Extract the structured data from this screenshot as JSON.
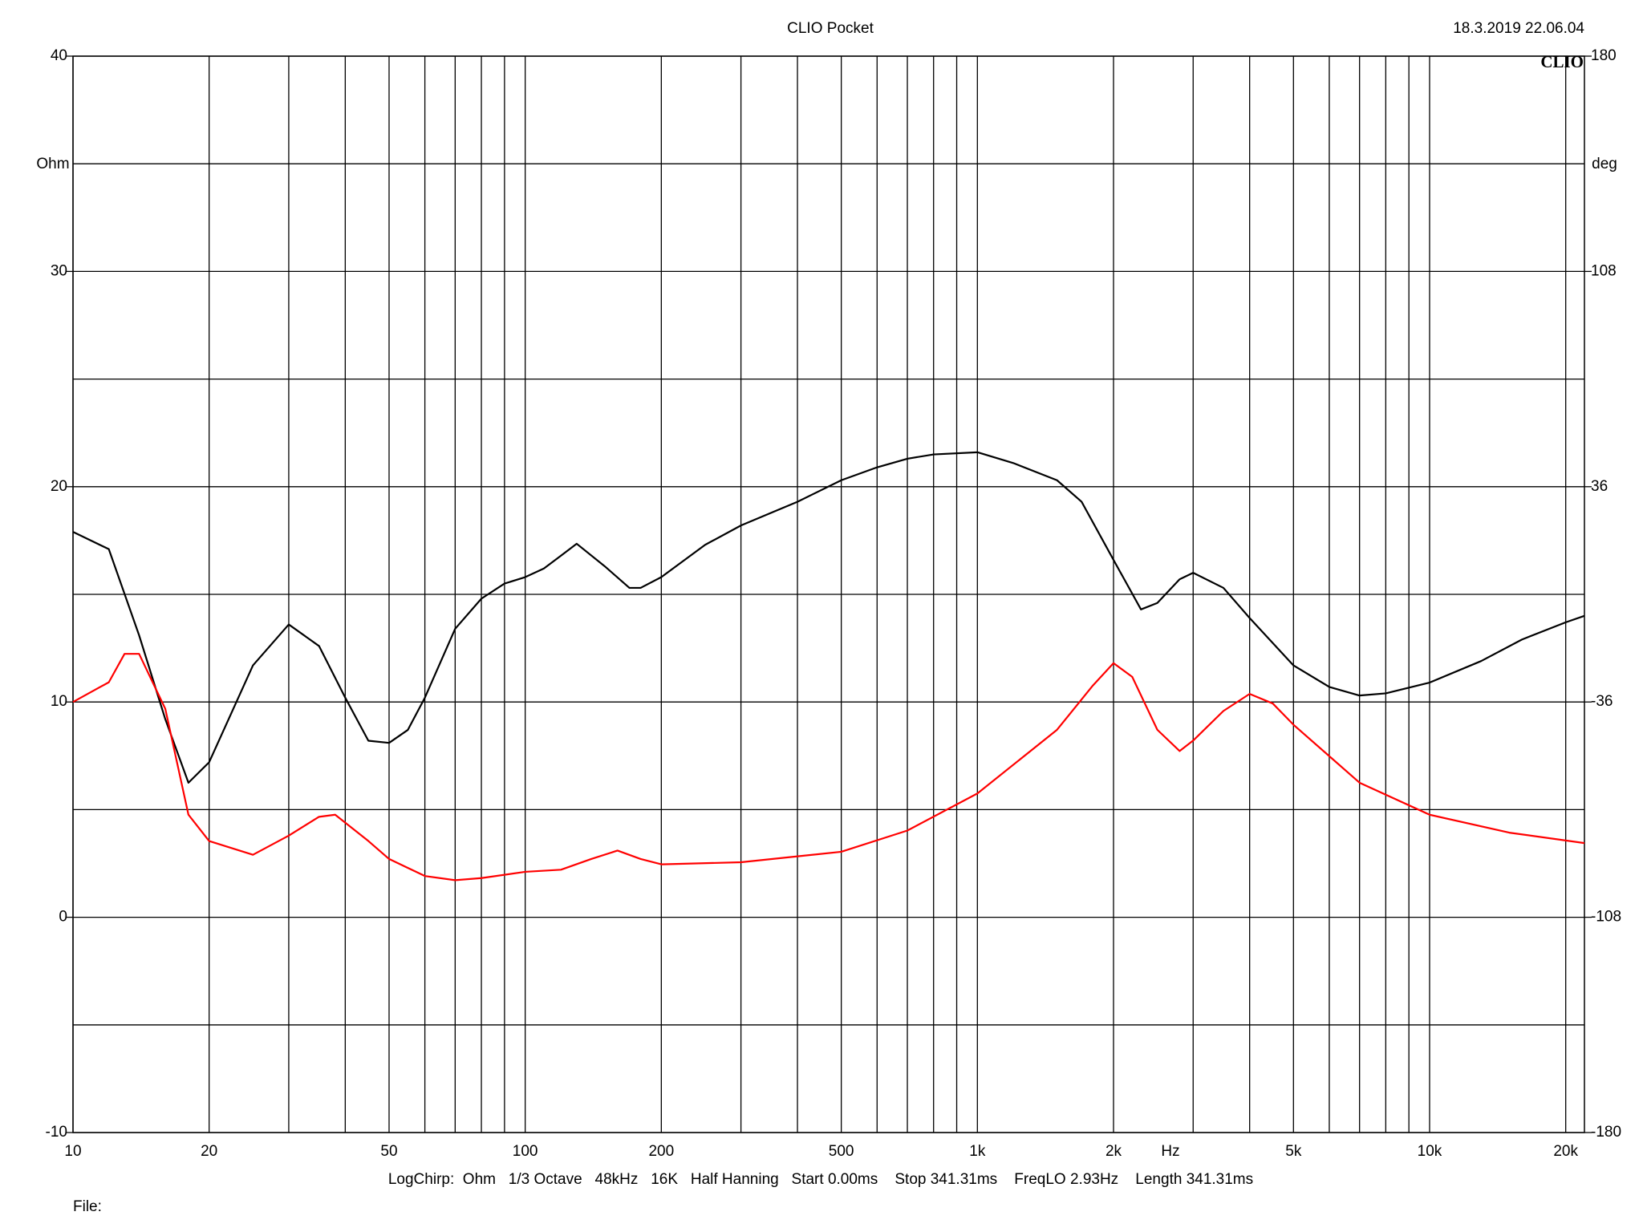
{
  "chart_data": {
    "type": "line",
    "title": "CLIO Pocket",
    "timestamp": "18.3.2019 22.06.04",
    "logo": "CLIO",
    "y_label": "Ohm",
    "y2_label": "deg",
    "x_label": "Hz",
    "footer": "LogChirp:  Ohm   1/3 Octave   48kHz   16K   Half Hanning   Start 0.00ms    Stop 341.31ms    FreqLO 2.93Hz    Length 341.31ms",
    "file_label": "File:",
    "xscale": "log",
    "grid": true,
    "xlim": [
      10,
      22000
    ],
    "xticks": [
      10,
      20,
      50,
      100,
      200,
      500,
      {
        "value": 1000,
        "label": "1k"
      },
      {
        "value": 2000,
        "label": "2k"
      },
      {
        "value": 5000,
        "label": "5k"
      },
      {
        "value": 10000,
        "label": "10k"
      },
      {
        "value": 20000,
        "label": "20k"
      }
    ],
    "x_minor_grid": [
      30,
      40,
      60,
      70,
      80,
      90,
      300,
      400,
      600,
      700,
      800,
      900,
      3000,
      4000,
      6000,
      7000,
      8000,
      9000
    ],
    "ylim": [
      -10,
      40
    ],
    "yticks": [
      -10,
      0,
      10,
      20,
      30,
      40
    ],
    "y_minor_grid": [
      -5,
      5,
      15,
      25,
      35
    ],
    "y2lim": [
      -180,
      180
    ],
    "y2ticks": [
      -180,
      -108,
      -36,
      36,
      108,
      180
    ],
    "series": [
      {
        "color": "#000000",
        "x": [
          10,
          12,
          14,
          16,
          18,
          20,
          25,
          30,
          35,
          40,
          45,
          50,
          55,
          60,
          70,
          80,
          90,
          100,
          110,
          120,
          130,
          150,
          170,
          180,
          200,
          250,
          300,
          400,
          500,
          600,
          700,
          800,
          1000,
          1200,
          1500,
          1700,
          2000,
          2300,
          2500,
          2800,
          3000,
          3500,
          4000,
          5000,
          6000,
          7000,
          8000,
          10000,
          13000,
          16000,
          20000,
          22000
        ],
        "values": [
          17.9,
          17.1,
          13.1,
          9.2,
          6.25,
          7.2,
          11.7,
          13.6,
          12.6,
          10.2,
          8.2,
          8.1,
          8.7,
          10.2,
          13.4,
          14.8,
          15.5,
          15.8,
          16.2,
          16.8,
          17.35,
          16.3,
          15.3,
          15.3,
          15.8,
          17.3,
          18.2,
          19.3,
          20.3,
          20.9,
          21.3,
          21.5,
          21.6,
          21.1,
          20.3,
          19.3,
          16.6,
          14.3,
          14.6,
          15.7,
          16.0,
          15.3,
          13.9,
          11.7,
          10.7,
          10.3,
          10.4,
          10.9,
          11.9,
          12.9,
          13.7,
          14.0
        ]
      },
      {
        "color": "#ff0000",
        "axis": "y2",
        "x": [
          10,
          12,
          13,
          14,
          16,
          18,
          20,
          25,
          30,
          35,
          38,
          45,
          50,
          60,
          70,
          80,
          100,
          120,
          140,
          160,
          180,
          200,
          300,
          500,
          700,
          1000,
          1500,
          1800,
          2000,
          2200,
          2500,
          2800,
          3000,
          3500,
          4000,
          4500,
          5000,
          7000,
          10000,
          15000,
          22000
        ],
        "values": [
          -36,
          -29.4,
          -19.9,
          -19.9,
          -38.3,
          -73.7,
          -82.5,
          -87.1,
          -80.7,
          -74.4,
          -73.7,
          -82.5,
          -88.5,
          -94.2,
          -95.6,
          -94.9,
          -92.8,
          -92.1,
          -88.5,
          -85.7,
          -88.5,
          -90.3,
          -89.6,
          -86.1,
          -79.0,
          -66.6,
          -45.3,
          -30.5,
          -23.0,
          -27.6,
          -45.3,
          -52.4,
          -48.9,
          -39.0,
          -33.3,
          -36.5,
          -43.6,
          -63.0,
          -73.7,
          -79.7,
          -83.2
        ]
      }
    ]
  }
}
